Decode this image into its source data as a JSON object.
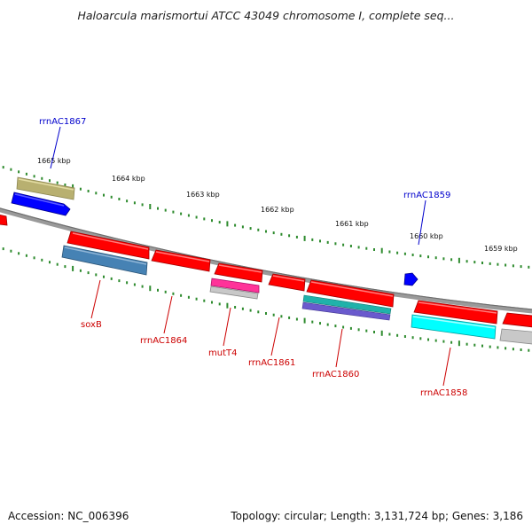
{
  "title": "Haloarcula marismortui ATCC 43049 chromosome I, complete seq...",
  "footer": {
    "accession": "Accession: NC_006396",
    "stats": "Topology: circular; Length: 3,131,724 bp; Genes: 3,186"
  },
  "colors": {
    "backbone": "#808080",
    "tick": "#2e8b2e",
    "gene_red": "#ff0000",
    "gene_blue": "#0000ff",
    "gene_olive": "#b3ad6b",
    "gene_steelblue": "#4682b4",
    "gene_magenta": "#ff3399",
    "gene_cyan": "#00ffff",
    "gene_gray": "#c0c0c0",
    "gene_teal": "#20b2aa",
    "gene_slate": "#6a5acd",
    "label_blue": "#0000cc",
    "label_red": "#cc0000"
  },
  "scale_labels": [
    "1665 kbp",
    "1664 kbp",
    "1663 kbp",
    "1662 kbp",
    "1661 kbp",
    "1660 kbp",
    "1659 kbp"
  ],
  "gene_labels": {
    "rrnAC1867": "rrnAC1867",
    "rrnAC1859": "rrnAC1859",
    "soxB": "soxB",
    "rrnAC1864": "rrnAC1864",
    "mutT4": "mutT4",
    "rrnAC1861": "rrnAC1861",
    "rrnAC1860": "rrnAC1860",
    "rrnAC1858": "rrnAC1858"
  }
}
